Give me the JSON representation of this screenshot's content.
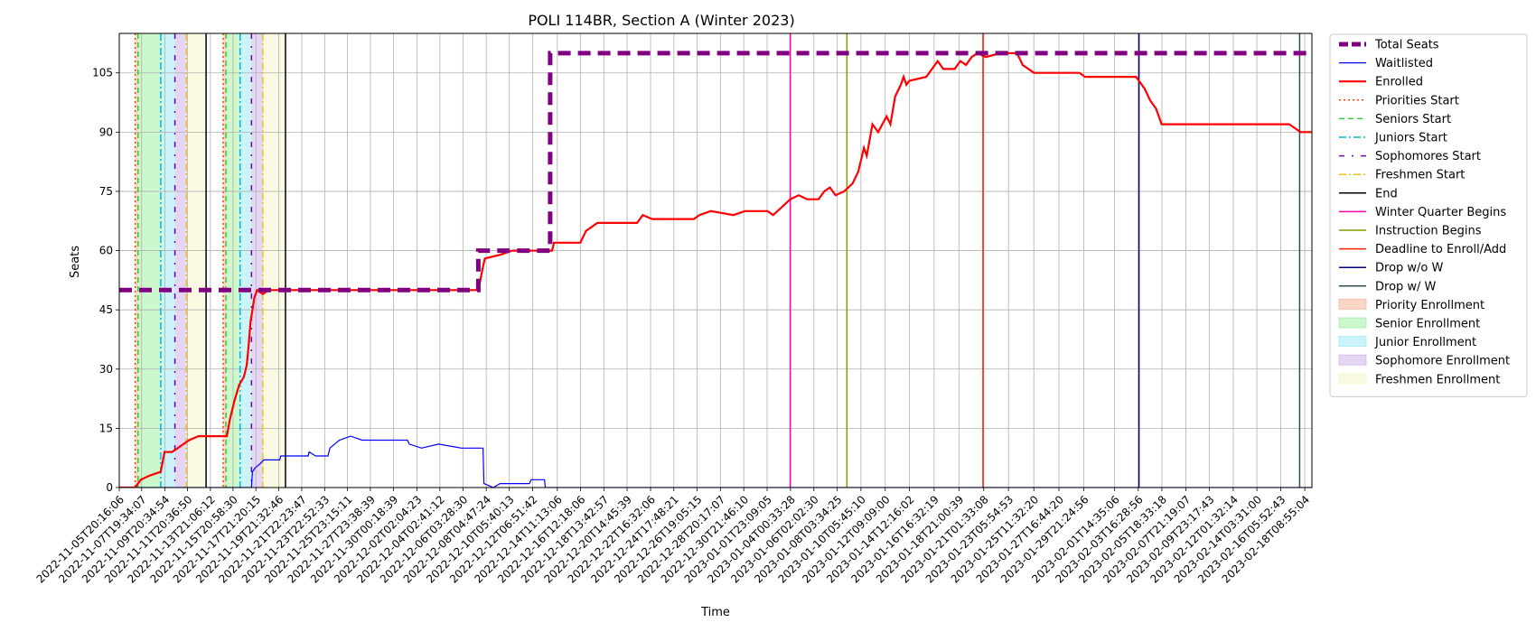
{
  "chart_data": {
    "type": "line",
    "title": "POLI 114BR, Section A (Winter 2023)",
    "xlabel": "Time",
    "ylabel": "Seats",
    "x_range": [
      "2022-11-05T20:16:06",
      "2023-02-19T00:00:00"
    ],
    "ylim": [
      0,
      115
    ],
    "y_ticks": [
      0,
      15,
      30,
      45,
      60,
      75,
      90,
      105
    ],
    "x_tick_labels": [
      "2022-11-05T20:16:06",
      "2022-11-07T19:34:07",
      "2022-11-09T20:34:54",
      "2022-11-11T20:36:50",
      "2022-11-13T21:06:12",
      "2022-11-15T20:58:30",
      "2022-11-17T21:20:15",
      "2022-11-19T21:32:46",
      "2022-11-21T22:23:47",
      "2022-11-23T22:52:33",
      "2022-11-25T23:15:11",
      "2022-11-27T23:38:39",
      "2022-11-30T00:18:39",
      "2022-12-02T02:04:23",
      "2022-12-04T02:41:12",
      "2022-12-06T03:28:30",
      "2022-12-08T04:47:24",
      "2022-12-10T05:40:13",
      "2022-12-12T06:51:42",
      "2022-12-14T11:13:06",
      "2022-12-16T12:18:06",
      "2022-12-18T13:42:57",
      "2022-12-20T14:45:39",
      "2022-12-22T16:32:06",
      "2022-12-24T17:48:21",
      "2022-12-26T19:05:15",
      "2022-12-28T20:17:07",
      "2022-12-30T21:46:10",
      "2023-01-01T23:09:05",
      "2023-01-04T00:33:28",
      "2023-01-06T02:02:30",
      "2023-01-08T03:34:25",
      "2023-01-10T05:45:10",
      "2023-01-12T09:09:00",
      "2023-01-14T12:16:02",
      "2023-01-16T16:32:19",
      "2023-01-18T21:00:39",
      "2023-01-21T01:33:08",
      "2023-01-23T05:54:53",
      "2023-01-25T11:32:20",
      "2023-01-27T16:44:20",
      "2023-01-29T21:24:56",
      "2023-02-01T14:35:06",
      "2023-02-03T16:28:56",
      "2023-02-05T18:33:18",
      "2023-02-07T21:19:07",
      "2023-02-09T23:17:43",
      "2023-02-12T01:32:14",
      "2023-02-14T03:31:00",
      "2023-02-16T05:52:43",
      "2023-02-18T08:55:04"
    ],
    "grid": true,
    "legend_position": "outside-right",
    "series": [
      {
        "name": "Total Seats",
        "color": "#800080",
        "style": "dashed-thick",
        "points": [
          [
            "2022-11-05T20:16:06",
            50
          ],
          [
            "2022-12-07T12:00:00",
            50
          ],
          [
            "2022-12-07T12:00:00",
            60
          ],
          [
            "2022-12-13T20:00:00",
            60
          ],
          [
            "2022-12-13T20:00:00",
            110
          ],
          [
            "2023-02-19T00:00:00",
            110
          ]
        ]
      },
      {
        "name": "Waitlisted",
        "color": "#0000ff",
        "style": "solid-thin",
        "points": [
          [
            "2022-11-05T20:16:06",
            0
          ],
          [
            "2022-11-17T12:00:00",
            0
          ],
          [
            "2022-11-17T14:00:00",
            4
          ],
          [
            "2022-11-17T20:00:00",
            5
          ],
          [
            "2022-11-18T06:00:00",
            6
          ],
          [
            "2022-11-18T14:00:00",
            7
          ],
          [
            "2022-11-20T00:00:00",
            7
          ],
          [
            "2022-11-20T02:00:00",
            8
          ],
          [
            "2022-11-22T12:00:00",
            8
          ],
          [
            "2022-11-22T14:00:00",
            9
          ],
          [
            "2022-11-23T04:00:00",
            8
          ],
          [
            "2022-11-24T06:00:00",
            8
          ],
          [
            "2022-11-24T10:00:00",
            10
          ],
          [
            "2022-11-25T06:00:00",
            12
          ],
          [
            "2022-11-26T06:00:00",
            13
          ],
          [
            "2022-11-27T06:00:00",
            12
          ],
          [
            "2022-12-01T06:00:00",
            12
          ],
          [
            "2022-12-01T10:00:00",
            11
          ],
          [
            "2022-12-02T12:00:00",
            10
          ],
          [
            "2022-12-04T00:00:00",
            11
          ],
          [
            "2022-12-06T00:00:00",
            10
          ],
          [
            "2022-12-07T22:00:00",
            10
          ],
          [
            "2022-12-08T00:00:00",
            1
          ],
          [
            "2022-12-08T20:00:00",
            0
          ],
          [
            "2022-12-09T10:00:00",
            1
          ],
          [
            "2022-12-12T00:00:00",
            1
          ],
          [
            "2022-12-12T04:00:00",
            2
          ],
          [
            "2022-12-13T08:00:00",
            2
          ],
          [
            "2022-12-13T10:00:00",
            0
          ],
          [
            "2023-02-19T00:00:00",
            0
          ]
        ]
      },
      {
        "name": "Enrolled",
        "color": "#ff0000",
        "style": "solid-thick",
        "points": [
          [
            "2022-11-05T20:16:06",
            0
          ],
          [
            "2022-11-07T06:00:00",
            0
          ],
          [
            "2022-11-07T12:00:00",
            1
          ],
          [
            "2022-11-07T18:00:00",
            2
          ],
          [
            "2022-11-08T12:00:00",
            3
          ],
          [
            "2022-11-09T12:00:00",
            4
          ],
          [
            "2022-11-09T20:00:00",
            9
          ],
          [
            "2022-11-10T12:00:00",
            9
          ],
          [
            "2022-11-11T00:00:00",
            10
          ],
          [
            "2022-11-11T12:00:00",
            11
          ],
          [
            "2022-11-12T00:00:00",
            12
          ],
          [
            "2022-11-12T20:00:00",
            13
          ],
          [
            "2022-11-15T08:00:00",
            13
          ],
          [
            "2022-11-15T14:00:00",
            17
          ],
          [
            "2022-11-16T00:00:00",
            22
          ],
          [
            "2022-11-16T10:00:00",
            26
          ],
          [
            "2022-11-16T20:00:00",
            28
          ],
          [
            "2022-11-17T02:00:00",
            31
          ],
          [
            "2022-11-17T06:00:00",
            36
          ],
          [
            "2022-11-17T10:00:00",
            42
          ],
          [
            "2022-11-17T14:00:00",
            45
          ],
          [
            "2022-11-17T18:00:00",
            48
          ],
          [
            "2022-11-18T00:00:00",
            50
          ],
          [
            "2022-11-18T12:00:00",
            49
          ],
          [
            "2022-11-19T00:00:00",
            50
          ],
          [
            "2022-12-07T12:00:00",
            50
          ],
          [
            "2022-12-07T22:00:00",
            56
          ],
          [
            "2022-12-08T02:00:00",
            58
          ],
          [
            "2022-12-09T12:00:00",
            59
          ],
          [
            "2022-12-10T12:00:00",
            60
          ],
          [
            "2022-12-14T00:00:00",
            60
          ],
          [
            "2022-12-14T04:00:00",
            62
          ],
          [
            "2022-12-16T12:00:00",
            62
          ],
          [
            "2022-12-17T00:00:00",
            65
          ],
          [
            "2022-12-17T12:00:00",
            66
          ],
          [
            "2022-12-18T00:00:00",
            67
          ],
          [
            "2022-12-21T12:00:00",
            67
          ],
          [
            "2022-12-22T00:00:00",
            69
          ],
          [
            "2022-12-22T20:00:00",
            68
          ],
          [
            "2022-12-26T12:00:00",
            68
          ],
          [
            "2022-12-27T00:00:00",
            69
          ],
          [
            "2022-12-28T00:00:00",
            70
          ],
          [
            "2022-12-30T00:00:00",
            69
          ],
          [
            "2022-12-31T00:00:00",
            70
          ],
          [
            "2023-01-02T00:00:00",
            70
          ],
          [
            "2023-01-02T12:00:00",
            69
          ],
          [
            "2023-01-03T06:00:00",
            71
          ],
          [
            "2023-01-04T00:00:00",
            73
          ],
          [
            "2023-01-04T18:00:00",
            74
          ],
          [
            "2023-01-05T12:00:00",
            73
          ],
          [
            "2023-01-06T12:00:00",
            73
          ],
          [
            "2023-01-07T00:00:00",
            75
          ],
          [
            "2023-01-07T12:00:00",
            76
          ],
          [
            "2023-01-08T00:00:00",
            74
          ],
          [
            "2023-01-08T18:00:00",
            75
          ],
          [
            "2023-01-09T12:00:00",
            77
          ],
          [
            "2023-01-10T00:00:00",
            80
          ],
          [
            "2023-01-10T12:00:00",
            86
          ],
          [
            "2023-01-10T18:00:00",
            84
          ],
          [
            "2023-01-11T06:00:00",
            92
          ],
          [
            "2023-01-11T18:00:00",
            90
          ],
          [
            "2023-01-12T12:00:00",
            94
          ],
          [
            "2023-01-12T20:00:00",
            92
          ],
          [
            "2023-01-13T06:00:00",
            99
          ],
          [
            "2023-01-13T18:00:00",
            102
          ],
          [
            "2023-01-14T00:00:00",
            104
          ],
          [
            "2023-01-14T06:00:00",
            102
          ],
          [
            "2023-01-14T12:00:00",
            103
          ],
          [
            "2023-01-16T00:00:00",
            104
          ],
          [
            "2023-01-17T00:00:00",
            108
          ],
          [
            "2023-01-17T12:00:00",
            106
          ],
          [
            "2023-01-18T12:00:00",
            106
          ],
          [
            "2023-01-19T00:00:00",
            108
          ],
          [
            "2023-01-19T12:00:00",
            107
          ],
          [
            "2023-01-20T00:00:00",
            109
          ],
          [
            "2023-01-20T12:00:00",
            110
          ],
          [
            "2023-01-21T06:00:00",
            109
          ],
          [
            "2023-01-22T12:00:00",
            110
          ],
          [
            "2023-01-24T00:00:00",
            110
          ],
          [
            "2023-01-24T12:00:00",
            107
          ],
          [
            "2023-01-25T12:00:00",
            105
          ],
          [
            "2023-01-29T12:00:00",
            105
          ],
          [
            "2023-01-30T00:00:00",
            104
          ],
          [
            "2023-02-03T12:00:00",
            104
          ],
          [
            "2023-02-04T06:00:00",
            101
          ],
          [
            "2023-02-04T18:00:00",
            98
          ],
          [
            "2023-02-05T06:00:00",
            96
          ],
          [
            "2023-02-05T18:00:00",
            92
          ],
          [
            "2023-02-17T00:00:00",
            92
          ],
          [
            "2023-02-17T12:00:00",
            91
          ],
          [
            "2023-02-18T00:00:00",
            90
          ],
          [
            "2023-02-19T00:00:00",
            90
          ]
        ]
      }
    ],
    "vertical_markers": [
      {
        "name": "Priorities Start",
        "color": "#ff4500",
        "style": "dotted",
        "x": [
          "2022-11-07T06:00:00",
          "2022-11-15T00:00:00"
        ]
      },
      {
        "name": "Seniors Start",
        "color": "#32cd32",
        "style": "dashed",
        "x": [
          "2022-11-07T12:00:00",
          "2022-11-15T06:00:00"
        ]
      },
      {
        "name": "Juniors Start",
        "color": "#00bcd4",
        "style": "dashdot",
        "x": [
          "2022-11-09T12:00:00",
          "2022-11-16T12:00:00"
        ]
      },
      {
        "name": "Sophomores Start",
        "color": "#6a0dad",
        "style": "loose-dashdot",
        "x": [
          "2022-11-10T18:00:00",
          "2022-11-17T12:00:00"
        ]
      },
      {
        "name": "Freshmen Start",
        "color": "#e6c619",
        "style": "dashdot",
        "x": [
          "2022-11-11T18:00:00",
          "2022-11-18T12:00:00"
        ]
      },
      {
        "name": "End",
        "color": "#000000",
        "style": "solid",
        "x": [
          "2022-11-13T12:00:00",
          "2022-11-20T12:00:00"
        ]
      },
      {
        "name": "Winter Quarter Begins",
        "color": "#ff00aa",
        "style": "solid",
        "x": [
          "2023-01-04T00:00:00"
        ]
      },
      {
        "name": "Instruction Begins",
        "color": "#7fa000",
        "style": "solid",
        "x": [
          "2023-01-09T00:00:00"
        ]
      },
      {
        "name": "Deadline to Enroll/Add",
        "color": "#ff2200",
        "style": "solid",
        "x": [
          "2023-01-21T00:00:00"
        ]
      },
      {
        "name": "Drop w/o W",
        "color": "#00008b",
        "style": "solid",
        "x": [
          "2023-02-03T18:00:00"
        ]
      },
      {
        "name": "Drop w/ W",
        "color": "#2f4f4f",
        "style": "solid",
        "x": [
          "2023-02-17T22:00:00"
        ]
      }
    ],
    "shaded_regions": [
      {
        "name": "Priority Enrollment",
        "color": "#f4a582",
        "spans": [
          [
            "2022-11-07T06:00:00",
            "2022-11-07T12:00:00"
          ],
          [
            "2022-11-15T00:00:00",
            "2022-11-15T06:00:00"
          ]
        ]
      },
      {
        "name": "Senior Enrollment",
        "color": "#90ee90",
        "spans": [
          [
            "2022-11-07T12:00:00",
            "2022-11-09T12:00:00"
          ],
          [
            "2022-11-15T06:00:00",
            "2022-11-16T12:00:00"
          ]
        ]
      },
      {
        "name": "Junior Enrollment",
        "color": "#8ee5ee",
        "spans": [
          [
            "2022-11-09T12:00:00",
            "2022-11-10T18:00:00"
          ],
          [
            "2022-11-16T12:00:00",
            "2022-11-17T12:00:00"
          ]
        ]
      },
      {
        "name": "Sophomore Enrollment",
        "color": "#c3a3e6",
        "spans": [
          [
            "2022-11-10T18:00:00",
            "2022-11-11T18:00:00"
          ],
          [
            "2022-11-17T12:00:00",
            "2022-11-18T12:00:00"
          ]
        ]
      },
      {
        "name": "Freshmen Enrollment",
        "color": "#f5f5c0",
        "spans": [
          [
            "2022-11-11T18:00:00",
            "2022-11-13T12:00:00"
          ],
          [
            "2022-11-18T12:00:00",
            "2022-11-20T12:00:00"
          ]
        ]
      }
    ],
    "legend": [
      {
        "label": "Total Seats",
        "kind": "line",
        "color": "#800080",
        "style": "dashed-thick"
      },
      {
        "label": "Waitlisted",
        "kind": "line",
        "color": "#0000ff",
        "style": "solid-thin"
      },
      {
        "label": "Enrolled",
        "kind": "line",
        "color": "#ff0000",
        "style": "solid-thick"
      },
      {
        "label": "Priorities Start",
        "kind": "line",
        "color": "#ff4500",
        "style": "dotted"
      },
      {
        "label": "Seniors Start",
        "kind": "line",
        "color": "#32cd32",
        "style": "dashed"
      },
      {
        "label": "Juniors Start",
        "kind": "line",
        "color": "#00bcd4",
        "style": "dashdot"
      },
      {
        "label": "Sophomores Start",
        "kind": "line",
        "color": "#6a0dad",
        "style": "loose-dashdot"
      },
      {
        "label": "Freshmen Start",
        "kind": "line",
        "color": "#e6c619",
        "style": "dashdot"
      },
      {
        "label": "End",
        "kind": "line",
        "color": "#000000",
        "style": "solid"
      },
      {
        "label": "Winter Quarter Begins",
        "kind": "line",
        "color": "#ff00aa",
        "style": "solid"
      },
      {
        "label": "Instruction Begins",
        "kind": "line",
        "color": "#7fa000",
        "style": "solid"
      },
      {
        "label": "Deadline to Enroll/Add",
        "kind": "line",
        "color": "#ff2200",
        "style": "solid"
      },
      {
        "label": "Drop w/o W",
        "kind": "line",
        "color": "#00008b",
        "style": "solid"
      },
      {
        "label": "Drop w/ W",
        "kind": "line",
        "color": "#2f4f4f",
        "style": "solid"
      },
      {
        "label": "Priority Enrollment",
        "kind": "patch",
        "color": "#f4a582"
      },
      {
        "label": "Senior Enrollment",
        "kind": "patch",
        "color": "#90ee90"
      },
      {
        "label": "Junior Enrollment",
        "kind": "patch",
        "color": "#8ee5ee"
      },
      {
        "label": "Sophomore Enrollment",
        "kind": "patch",
        "color": "#c3a3e6"
      },
      {
        "label": "Freshmen Enrollment",
        "kind": "patch",
        "color": "#f5f5c0"
      }
    ]
  }
}
